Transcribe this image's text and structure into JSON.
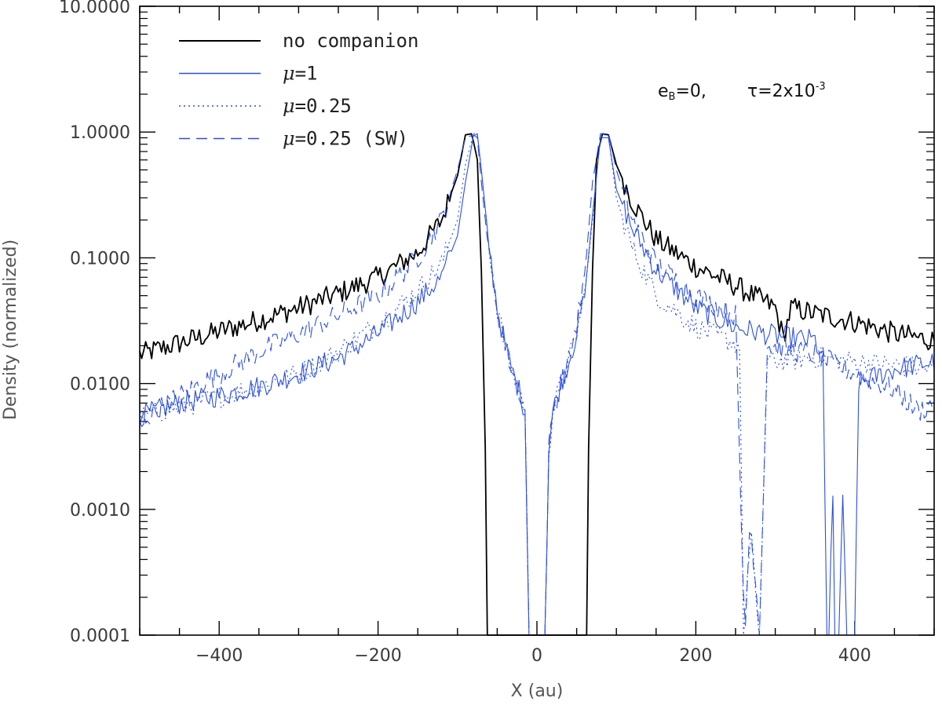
{
  "chart_data": {
    "type": "line",
    "title": "",
    "xlabel": "X (au)",
    "ylabel": "Density (normalized)",
    "xlim": [
      -500,
      500
    ],
    "ylim": [
      0.0001,
      10
    ],
    "yscale": "log",
    "x_ticks": [
      -400,
      -200,
      0,
      200,
      400
    ],
    "x_tick_labels": [
      "−400",
      "−200",
      "0",
      "200",
      "400"
    ],
    "y_ticks": [
      0.0001,
      0.001,
      0.01,
      0.1,
      1,
      10
    ],
    "y_tick_labels": [
      "0.0001",
      "0.0010",
      "0.0100",
      "0.1000",
      "1.0000",
      "10.0000"
    ],
    "annotation": {
      "e_label": "e",
      "e_subscript": "B",
      "e_value": "=0,",
      "tau_label": "τ=2x10",
      "tau_exponent": "-3"
    },
    "legend_position": "top-left",
    "series": [
      {
        "name": "no companion",
        "legend_prefix": "",
        "legend_suffix": "no companion",
        "color": "#000000",
        "style": "solid",
        "x": [
          -500,
          -450,
          -400,
          -350,
          -300,
          -250,
          -200,
          -150,
          -120,
          -100,
          -90,
          -82,
          -75,
          -70,
          -65,
          -64,
          -1,
          0,
          1,
          64,
          65,
          70,
          75,
          82,
          90,
          100,
          120,
          150,
          200,
          250,
          300,
          310,
          320,
          350,
          400,
          450,
          500
        ],
        "y": [
          0.017,
          0.021,
          0.026,
          0.032,
          0.04,
          0.052,
          0.07,
          0.11,
          0.2,
          0.45,
          0.95,
          0.97,
          0.6,
          0.08,
          0.003,
          0.0001,
          0.0001,
          0.0001,
          0.0001,
          0.0001,
          0.003,
          0.08,
          0.6,
          0.97,
          0.95,
          0.55,
          0.28,
          0.14,
          0.085,
          0.06,
          0.04,
          0.023,
          0.04,
          0.036,
          0.031,
          0.025,
          0.022
        ]
      },
      {
        "name": "μ=1",
        "legend_prefix": "μ",
        "legend_suffix": "=1",
        "color": "#2c4fe0",
        "style": "solid",
        "x": [
          -500,
          -450,
          -400,
          -350,
          -300,
          -250,
          -200,
          -150,
          -120,
          -100,
          -90,
          -80,
          -75,
          -70,
          -60,
          -50,
          -40,
          -30,
          -20,
          -15,
          -10,
          -5,
          0,
          5,
          10,
          15,
          20,
          30,
          40,
          50,
          60,
          70,
          80,
          90,
          100,
          120,
          150,
          200,
          250,
          300,
          350,
          360,
          365,
          368,
          372,
          375,
          380,
          385,
          390,
          395,
          400,
          405,
          420,
          450,
          500
        ],
        "y": [
          0.0055,
          0.007,
          0.008,
          0.0095,
          0.012,
          0.016,
          0.025,
          0.045,
          0.07,
          0.15,
          0.4,
          0.93,
          0.97,
          0.5,
          0.12,
          0.04,
          0.02,
          0.012,
          0.008,
          0.006,
          0.0001,
          0.0001,
          0.0001,
          0.0001,
          0.0001,
          0.003,
          0.006,
          0.01,
          0.015,
          0.025,
          0.05,
          0.22,
          0.9,
          0.9,
          0.35,
          0.17,
          0.08,
          0.04,
          0.028,
          0.024,
          0.022,
          0.015,
          0.0001,
          0.0001,
          0.0022,
          0.0001,
          0.0001,
          0.0011,
          0.0001,
          0.0001,
          0.0001,
          0.01,
          0.011,
          0.013,
          0.015
        ]
      },
      {
        "name": "μ=0.25",
        "legend_prefix": "μ",
        "legend_suffix": "=0.25",
        "color": "#2c4fe0",
        "style": "dotted",
        "x": [
          -500,
          -450,
          -400,
          -350,
          -300,
          -250,
          -200,
          -150,
          -120,
          -100,
          -90,
          -80,
          -75,
          -70,
          -60,
          -50,
          -40,
          -30,
          -20,
          -15,
          -10,
          -5,
          0,
          5,
          10,
          15,
          20,
          30,
          40,
          50,
          60,
          70,
          80,
          90,
          100,
          120,
          150,
          200,
          240,
          255,
          260,
          265,
          270,
          275,
          280,
          290,
          350,
          400,
          450,
          500
        ],
        "y": [
          0.0055,
          0.0065,
          0.0078,
          0.0095,
          0.012,
          0.018,
          0.03,
          0.055,
          0.09,
          0.2,
          0.55,
          0.97,
          0.95,
          0.5,
          0.12,
          0.04,
          0.02,
          0.012,
          0.008,
          0.006,
          0.0001,
          0.0001,
          0.0001,
          0.0001,
          0.0001,
          0.003,
          0.006,
          0.01,
          0.015,
          0.025,
          0.05,
          0.2,
          0.95,
          0.95,
          0.3,
          0.12,
          0.05,
          0.028,
          0.022,
          0.02,
          0.0001,
          0.0003,
          0.0006,
          0.0002,
          0.0001,
          0.015,
          0.016,
          0.015,
          0.014,
          0.013
        ]
      },
      {
        "name": "μ=0.25 (SW)",
        "legend_prefix": "μ",
        "legend_suffix": "=0.25 (SW)",
        "color": "#2c4fe0",
        "style": "dashed",
        "x": [
          -500,
          -450,
          -400,
          -350,
          -300,
          -250,
          -200,
          -150,
          -120,
          -100,
          -90,
          -80,
          -75,
          -70,
          -60,
          -50,
          -40,
          -30,
          -20,
          -15,
          -10,
          -5,
          0,
          5,
          10,
          15,
          20,
          30,
          40,
          50,
          60,
          70,
          80,
          90,
          100,
          120,
          150,
          200,
          250,
          258,
          262,
          268,
          275,
          280,
          290,
          350,
          400,
          450,
          480,
          500
        ],
        "y": [
          0.005,
          0.008,
          0.012,
          0.018,
          0.025,
          0.035,
          0.05,
          0.1,
          0.2,
          0.5,
          0.9,
          0.95,
          0.9,
          0.4,
          0.1,
          0.04,
          0.02,
          0.012,
          0.008,
          0.006,
          0.0001,
          0.0001,
          0.0001,
          0.0001,
          0.0001,
          0.003,
          0.006,
          0.01,
          0.015,
          0.03,
          0.07,
          0.4,
          0.97,
          0.97,
          0.5,
          0.2,
          0.09,
          0.05,
          0.035,
          0.0005,
          0.0001,
          0.0008,
          0.0003,
          0.0001,
          0.02,
          0.017,
          0.012,
          0.009,
          0.006,
          0.007
        ]
      }
    ]
  }
}
